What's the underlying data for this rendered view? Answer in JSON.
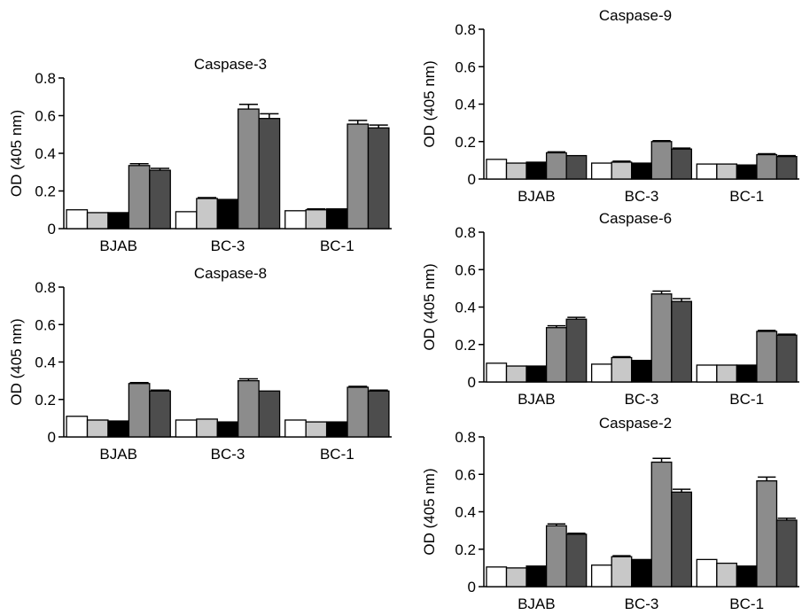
{
  "chart_data": [
    {
      "type": "bar",
      "title": "Caspase-3",
      "ylabel": "OD (405 nm)",
      "ylim": [
        0,
        0.8
      ],
      "yticks": [
        "0",
        "0.2",
        "0.4",
        "0.6",
        "0.8"
      ],
      "categories": [
        "BJAB",
        "BC-3",
        "BC-1"
      ],
      "bar_colors": [
        "#ffffff",
        "#c8c8c8",
        "#000000",
        "#8c8c8c",
        "#4d4d4d"
      ],
      "values": [
        [
          0.1,
          0.085,
          0.085,
          0.335,
          0.31
        ],
        [
          0.09,
          0.16,
          0.155,
          0.635,
          0.585
        ],
        [
          0.095,
          0.1,
          0.105,
          0.555,
          0.535
        ]
      ],
      "errors": [
        [
          0,
          0,
          0,
          0.01,
          0.01
        ],
        [
          0,
          0.005,
          0,
          0.025,
          0.025
        ],
        [
          0,
          0.005,
          0,
          0.02,
          0.015
        ]
      ]
    },
    {
      "type": "bar",
      "title": "Caspase-8",
      "ylabel": "OD (405 nm)",
      "ylim": [
        0,
        0.8
      ],
      "yticks": [
        "0",
        "0.2",
        "0.4",
        "0.6",
        "0.8"
      ],
      "categories": [
        "BJAB",
        "BC-3",
        "BC-1"
      ],
      "bar_colors": [
        "#ffffff",
        "#c8c8c8",
        "#000000",
        "#8c8c8c",
        "#4d4d4d"
      ],
      "values": [
        [
          0.11,
          0.09,
          0.085,
          0.285,
          0.245
        ],
        [
          0.09,
          0.095,
          0.08,
          0.3,
          0.245
        ],
        [
          0.09,
          0.08,
          0.08,
          0.265,
          0.245
        ]
      ],
      "errors": [
        [
          0,
          0,
          0,
          0.005,
          0.005
        ],
        [
          0,
          0,
          0,
          0.01,
          0
        ],
        [
          0,
          0,
          0,
          0.005,
          0.005
        ]
      ]
    },
    {
      "type": "bar",
      "title": "Caspase-9",
      "ylabel": "OD (405 nm)",
      "ylim": [
        0,
        0.8
      ],
      "yticks": [
        "0",
        "0.2",
        "0.4",
        "0.6",
        "0.8"
      ],
      "categories": [
        "BJAB",
        "BC-3",
        "BC-1"
      ],
      "bar_colors": [
        "#ffffff",
        "#c8c8c8",
        "#000000",
        "#8c8c8c",
        "#4d4d4d"
      ],
      "values": [
        [
          0.105,
          0.085,
          0.09,
          0.14,
          0.125
        ],
        [
          0.085,
          0.09,
          0.085,
          0.2,
          0.16
        ],
        [
          0.08,
          0.08,
          0.075,
          0.13,
          0.12
        ]
      ],
      "errors": [
        [
          0,
          0,
          0,
          0.005,
          0
        ],
        [
          0,
          0.005,
          0,
          0.005,
          0.005
        ],
        [
          0,
          0,
          0,
          0.005,
          0.005
        ]
      ]
    },
    {
      "type": "bar",
      "title": "Caspase-6",
      "ylabel": "OD (405 nm)",
      "ylim": [
        0,
        0.8
      ],
      "yticks": [
        "0",
        "0.2",
        "0.4",
        "0.6",
        "0.8"
      ],
      "categories": [
        "BJAB",
        "BC-3",
        "BC-1"
      ],
      "bar_colors": [
        "#ffffff",
        "#c8c8c8",
        "#000000",
        "#8c8c8c",
        "#4d4d4d"
      ],
      "values": [
        [
          0.1,
          0.085,
          0.085,
          0.29,
          0.335
        ],
        [
          0.095,
          0.13,
          0.115,
          0.47,
          0.43
        ],
        [
          0.09,
          0.09,
          0.09,
          0.27,
          0.25
        ]
      ],
      "errors": [
        [
          0,
          0,
          0,
          0.01,
          0.01
        ],
        [
          0,
          0.005,
          0,
          0.015,
          0.015
        ],
        [
          0,
          0,
          0,
          0.005,
          0.005
        ]
      ]
    },
    {
      "type": "bar",
      "title": "Caspase-2",
      "ylabel": "OD (405 nm)",
      "ylim": [
        0,
        0.8
      ],
      "yticks": [
        "0",
        "0.2",
        "0.4",
        "0.6",
        "0.8"
      ],
      "categories": [
        "BJAB",
        "BC-3",
        "BC-1"
      ],
      "bar_colors": [
        "#ffffff",
        "#c8c8c8",
        "#000000",
        "#8c8c8c",
        "#4d4d4d"
      ],
      "values": [
        [
          0.105,
          0.1,
          0.11,
          0.325,
          0.28
        ],
        [
          0.115,
          0.16,
          0.145,
          0.665,
          0.505
        ],
        [
          0.145,
          0.125,
          0.11,
          0.565,
          0.355
        ]
      ],
      "errors": [
        [
          0,
          0,
          0,
          0.01,
          0.005
        ],
        [
          0,
          0.005,
          0,
          0.02,
          0.015
        ],
        [
          0,
          0,
          0,
          0.02,
          0.01
        ]
      ]
    }
  ]
}
